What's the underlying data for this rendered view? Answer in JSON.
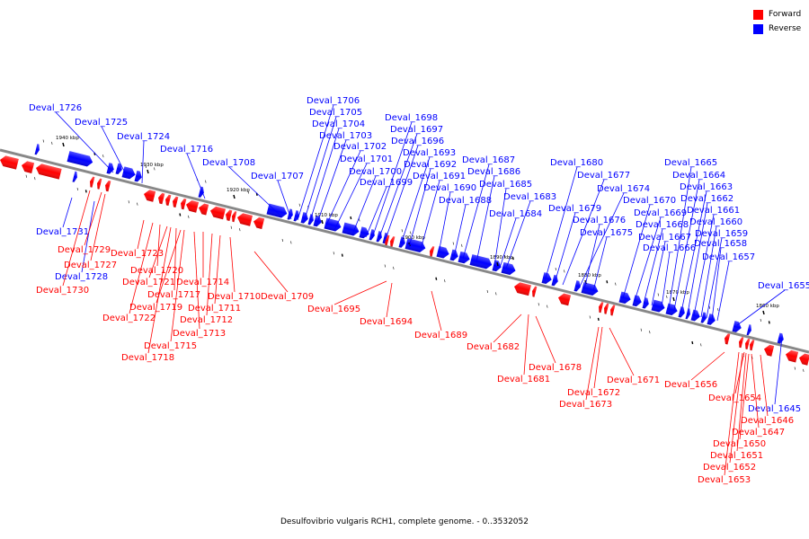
{
  "legend": [
    {
      "label": "Forward",
      "color": "#ff0000"
    },
    {
      "label": "Reverse",
      "color": "#0000ff"
    }
  ],
  "caption": "Desulfovibrio vulgaris RCH1, complete genome. - 0..3532052",
  "colors": {
    "forward": "#ff0000",
    "reverse": "#0000ff",
    "backbone": "#888888"
  },
  "scale_ticks": [
    "1940 kbp",
    "1930 kbp",
    "1920 kbp",
    "1910 kbp",
    "1900 kbp",
    "1890 kbp",
    "1880 kbp",
    "1870 kbp",
    "1860 kbp"
  ],
  "genes": {
    "reverse": [
      "Deval_1726",
      "Deval_1725",
      "Deval_1724",
      "Deval_1716",
      "Deval_1708",
      "Deval_1707",
      "Deval_1706",
      "Deval_1705",
      "Deval_1704",
      "Deval_1703",
      "Deval_1702",
      "Deval_1701",
      "Deval_1700",
      "Deval_1699",
      "Deval_1698",
      "Deval_1697",
      "Deval_1696",
      "Deval_1693",
      "Deval_1692",
      "Deval_1691",
      "Deval_1690",
      "Deval_1688",
      "Deval_1687",
      "Deval_1686",
      "Deval_1685",
      "Deval_1683",
      "Deval_1684",
      "Deval_1680",
      "Deval_1677",
      "Deval_1679",
      "Deval_1674",
      "Deval_1676",
      "Deval_1670",
      "Deval_1675",
      "Deval_1665",
      "Deval_1664",
      "Deval_1663",
      "Deval_1662",
      "Deval_1661",
      "Deval_1669",
      "Deval_1660",
      "Deval_1668",
      "Deval_1659",
      "Deval_1667",
      "Deval_1658",
      "Deval_1666",
      "Deval_1657",
      "Deval_1655",
      "Deval_1731",
      "Deval_1728",
      "Deval_1645"
    ],
    "forward": [
      "Deval_1729",
      "Deval_1727",
      "Deval_1730",
      "Deval_1723",
      "Deval_1720",
      "Deval_1721",
      "Deval_1714",
      "Deval_1717",
      "Deval_1710",
      "Deval_1709",
      "Deval_1719",
      "Deval_1711",
      "Deval_1722",
      "Deval_1712",
      "Deval_1713",
      "Deval_1715",
      "Deval_1718",
      "Deval_1695",
      "Deval_1694",
      "Deval_1689",
      "Deval_1682",
      "Deval_1678",
      "Deval_1681",
      "Deval_1671",
      "Deval_1672",
      "Deval_1673",
      "Deval_1656",
      "Deval_1654",
      "Deval_1646",
      "Deval_1647",
      "Deval_1650",
      "Deval_1651",
      "Deval_1652",
      "Deval_1653"
    ]
  }
}
